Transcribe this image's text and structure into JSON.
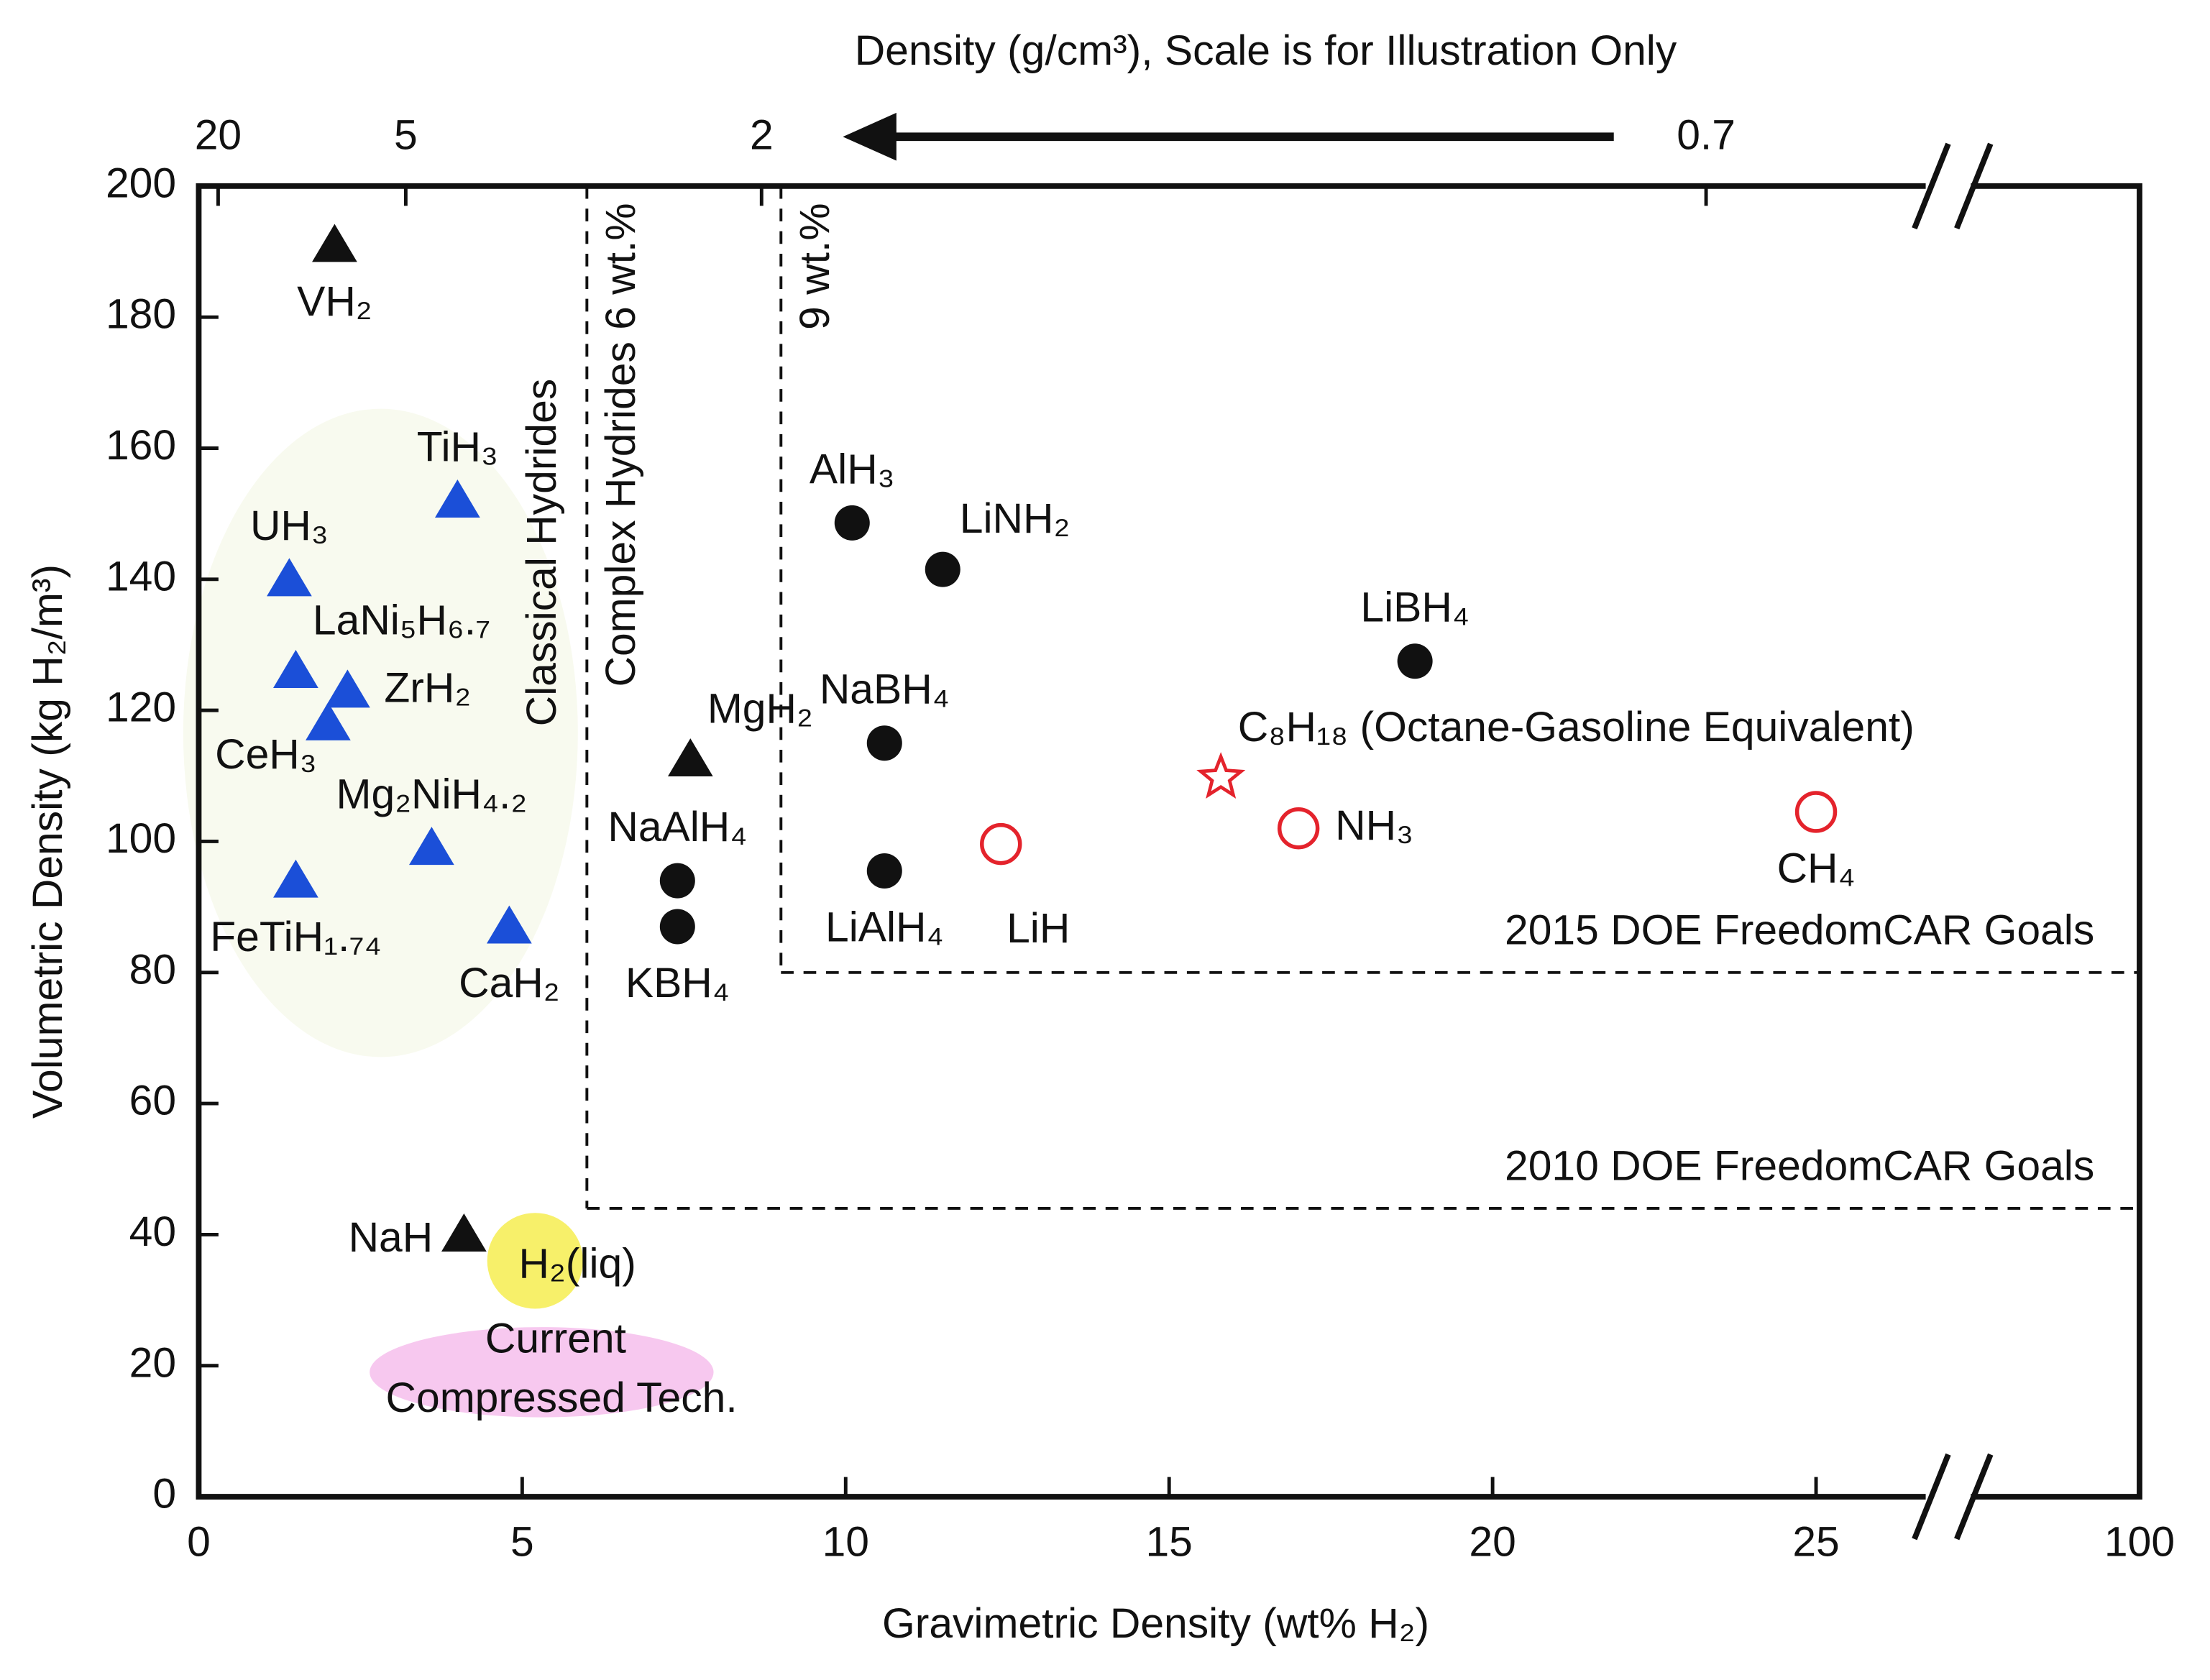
{
  "chart_data": {
    "type": "scatter",
    "title": "Density (g/cm³), Scale is for Illustration Only",
    "x_label": "Gravimetric Density (wt% H₂)",
    "y_label": "Volumetric Density (kg H₂/m³)",
    "xlim": [
      0,
      100
    ],
    "x_break": [
      27,
      97
    ],
    "xticks": [
      0,
      5,
      10,
      15,
      20,
      25,
      100
    ],
    "ylim": [
      0,
      200
    ],
    "yticks": [
      0,
      20,
      40,
      60,
      80,
      100,
      120,
      140,
      160,
      180,
      200
    ],
    "x2ticks": [
      {
        "value": 20,
        "x": 0.3
      },
      {
        "value": 5,
        "x": 3.2
      },
      {
        "value": 2,
        "x": 8.7
      },
      {
        "value": 0.7,
        "x": 23.3
      }
    ],
    "dividers": [
      {
        "x": 6,
        "ymin": 44,
        "left_label": "Classical Hydrides",
        "right_label": "Complex Hydrides 6 wt.%"
      },
      {
        "x": 9,
        "ymin": 80,
        "right_label": "9 wt.%"
      }
    ],
    "goals": [
      {
        "label": "2015 DOE FreedomCAR Goals",
        "y": 80,
        "xmin": 9
      },
      {
        "label": "2010 DOE FreedomCAR Goals",
        "y": 44,
        "xmin": 6
      }
    ],
    "regions": [
      {
        "label": "Current Compressed Tech.",
        "x": 5.3,
        "y": 19,
        "color": "#f7c8ef",
        "label_color": "#5a1030"
      }
    ],
    "series": [
      {
        "marker": "triangle",
        "color": "#1b4fd8",
        "label_color": "#2e5a1f",
        "labels": [
          "TiH₃",
          "UH₃",
          "LaNi₅H₆.₇",
          "ZrH₂",
          "CeH₃",
          "Mg₂NiH₄.₂",
          "FeTiH₁.₇₄",
          "CaH₂"
        ],
        "x": [
          4.0,
          1.4,
          1.5,
          2.3,
          2.0,
          3.6,
          1.5,
          4.8
        ],
        "values": [
          152,
          140,
          126,
          123,
          118,
          99,
          94,
          87
        ],
        "label_at": [
          "above",
          "above",
          "above-right",
          "right",
          "below-left",
          "above",
          "below",
          "below"
        ]
      },
      {
        "marker": "triangle",
        "color": "#111111",
        "label_color": "#111111",
        "labels": [
          "VH₂",
          "MgH₂",
          "NaH"
        ],
        "x": [
          2.1,
          7.6,
          4.1
        ],
        "values": [
          191,
          112.5,
          40
        ],
        "label_at": [
          "below",
          "above-right",
          "left"
        ]
      },
      {
        "marker": "circle",
        "color": "#111111",
        "label_color": "#111111",
        "labels": [
          "AlH₃",
          "LiNH₂",
          "NaBH₄",
          "LiAlH₄",
          "NaAlH₄",
          "KBH₄",
          "LiBH₄"
        ],
        "x": [
          10.1,
          11.5,
          10.6,
          10.6,
          7.4,
          7.4,
          18.8
        ],
        "values": [
          148.6,
          141.5,
          115,
          95.5,
          94,
          87,
          127.5
        ],
        "label_at": [
          "above",
          "above-right",
          "above",
          "below",
          "above",
          "below",
          "above"
        ]
      },
      {
        "marker": "ring",
        "color": "#e4232c",
        "label_color": "#111111",
        "labels": [
          "LiH",
          "NH₃",
          "CH₄"
        ],
        "x": [
          12.4,
          17.0,
          25.0
        ],
        "values": [
          99.6,
          102,
          104.5
        ],
        "label_at": [
          "below-right",
          "right",
          "below"
        ]
      },
      {
        "marker": "star",
        "color": "#e4232c",
        "label_color": "#111111",
        "labels": [
          "C₈H₁₈ (Octane-Gasoline Equivalent)"
        ],
        "x": [
          15.8
        ],
        "values": [
          109.7
        ],
        "label_at": [
          "above-right"
        ]
      },
      {
        "marker": "disc",
        "color": "#f7f06a",
        "label_color": "#111111",
        "labels": [
          "H₂(liq)"
        ],
        "x": [
          5.2
        ],
        "values": [
          36
        ],
        "label_at": [
          "center"
        ]
      }
    ]
  }
}
